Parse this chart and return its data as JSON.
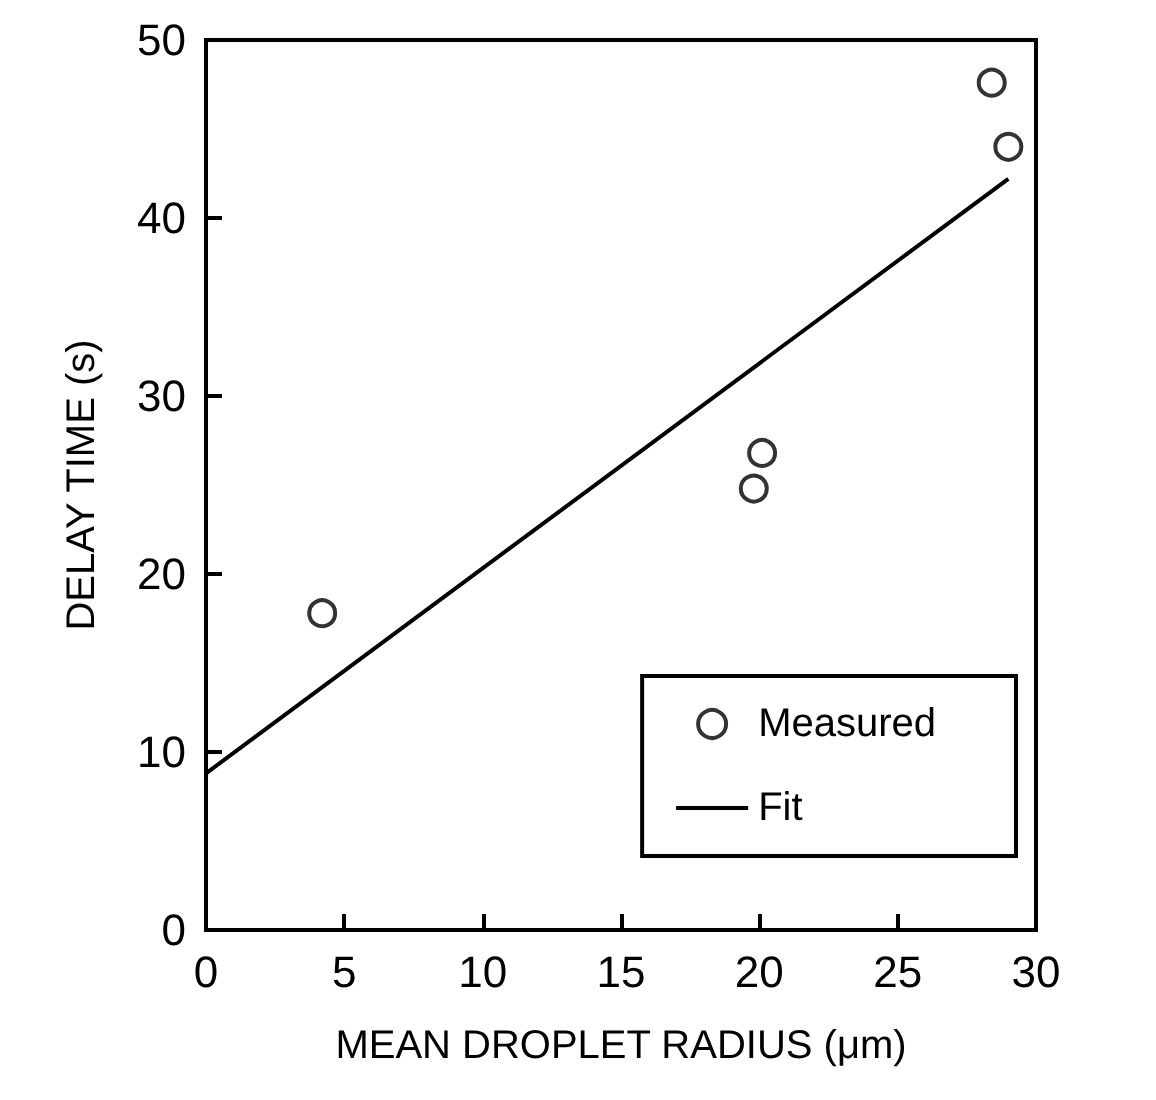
{
  "chart_data": {
    "type": "scatter",
    "xlabel": "MEAN DROPLET RADIUS (μm)",
    "ylabel": "DELAY TIME (s)",
    "xlim": [
      0,
      30
    ],
    "xticks": [
      0,
      5,
      10,
      15,
      20,
      25,
      30
    ],
    "ylim": [
      0,
      50
    ],
    "yticks": [
      0,
      10,
      20,
      30,
      40,
      50
    ],
    "grid": false,
    "legend": "bottom right",
    "series": [
      {
        "name": "Measured",
        "marker": "circle",
        "color": "#000000",
        "x": [
          4.2,
          19.8,
          20.1,
          28.4,
          29.0
        ],
        "values": [
          17.8,
          24.8,
          26.8,
          47.6,
          44.0
        ]
      },
      {
        "name": "Fit",
        "type": "line",
        "marker": "none",
        "line_style": "solid",
        "color": "#000000",
        "x": [
          0,
          29
        ],
        "values": [
          8.8,
          42.2
        ]
      }
    ]
  }
}
